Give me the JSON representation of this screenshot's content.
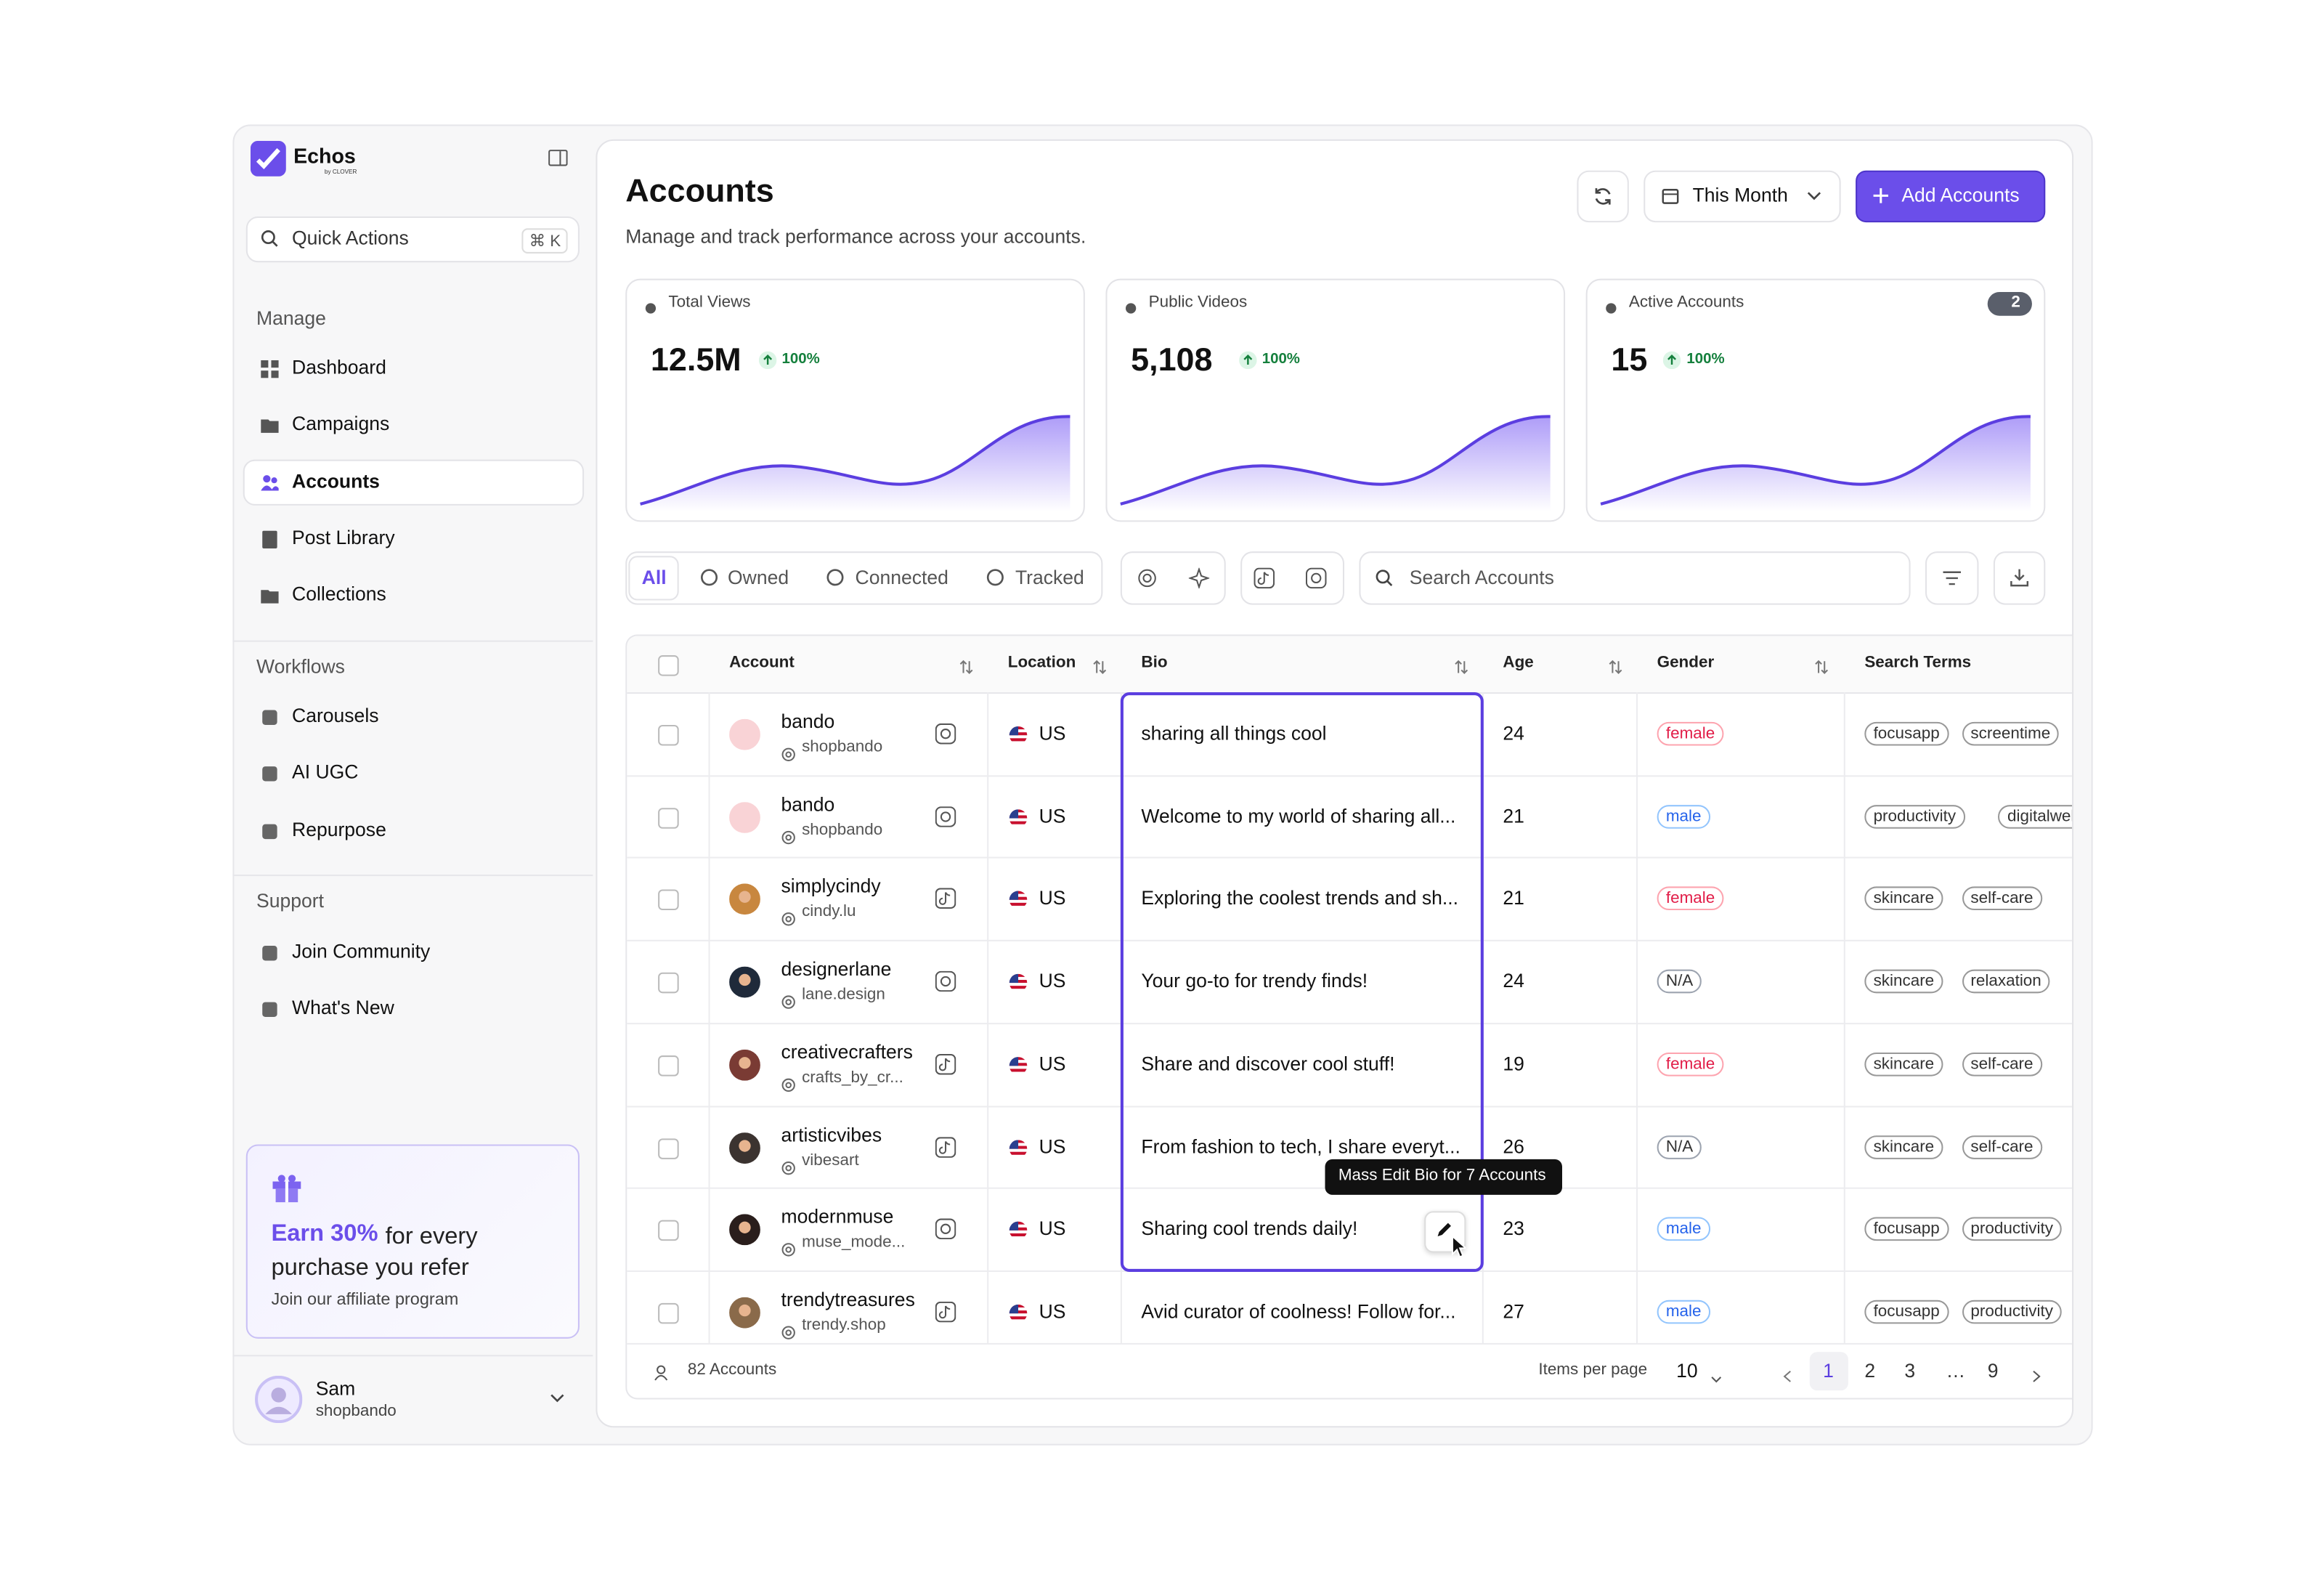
{
  "sidebar": {
    "brand": "Echos",
    "brand_sub": "by CLOVER",
    "quick_actions": "Quick Actions",
    "shortcut": "⌘ K",
    "sections": [
      {
        "title": "Manage",
        "items": [
          "Dashboard",
          "Campaigns",
          "Accounts",
          "Post Library",
          "Collections"
        ]
      },
      {
        "title": "Workflows",
        "items": [
          "Carousels",
          "AI UGC",
          "Repurpose"
        ]
      },
      {
        "title": "Support",
        "items": [
          "Join Community",
          "What's New"
        ]
      }
    ],
    "promo": {
      "highlight": "Earn 30%",
      "text": "for every purchase you refer",
      "sub": "Join our affiliate program"
    },
    "user": {
      "name": "Sam",
      "handle": "shopbando"
    }
  },
  "header": {
    "title": "Accounts",
    "subtitle": "Manage and track performance across your accounts.",
    "period": "This Month",
    "add_button": "Add Accounts"
  },
  "stats": [
    {
      "label": "Total Views",
      "value": "12.5M",
      "change": "100%"
    },
    {
      "label": "Public Videos",
      "value": "5,108",
      "change": "100%"
    },
    {
      "label": "Active Accounts",
      "value": "15",
      "change": "100%",
      "badge": "2"
    }
  ],
  "filters": {
    "tabs": [
      "All",
      "Owned",
      "Connected",
      "Tracked"
    ],
    "search_placeholder": "Search Accounts"
  },
  "table": {
    "columns": [
      "Account",
      "Location",
      "Bio",
      "Age",
      "Gender",
      "Search Terms"
    ],
    "rows": [
      {
        "name": "bando",
        "handle": "shopbando",
        "location": "US",
        "bio": "sharing all things cool",
        "age": 24,
        "gender": "female",
        "terms": [
          "focusapp",
          "screentime"
        ]
      },
      {
        "name": "bando",
        "handle": "shopbando",
        "location": "US",
        "bio": "Welcome to my world of sharing all...",
        "age": 21,
        "gender": "male",
        "terms": [
          "productivity",
          "digitalwellbeing"
        ]
      },
      {
        "name": "simplycindy",
        "handle": "cindy.lu",
        "location": "US",
        "bio": "Exploring the coolest trends and sh...",
        "age": 21,
        "gender": "female",
        "terms": [
          "skincare",
          "self-care"
        ]
      },
      {
        "name": "designerlane",
        "handle": "lane.design",
        "location": "US",
        "bio": "Your go-to for trendy finds!",
        "age": 24,
        "gender": "N/A",
        "terms": [
          "skincare",
          "relaxation"
        ]
      },
      {
        "name": "creativecrafters",
        "handle": "crafts_by_cr...",
        "location": "US",
        "bio": "Share and discover cool stuff!",
        "age": 19,
        "gender": "female",
        "terms": [
          "skincare",
          "self-care"
        ]
      },
      {
        "name": "artisticvibes",
        "handle": "vibesart",
        "location": "US",
        "bio": "From fashion to tech, I share everyt...",
        "age": 26,
        "gender": "N/A",
        "terms": [
          "skincare",
          "self-care"
        ]
      },
      {
        "name": "modernmuse",
        "handle": "muse_mode...",
        "location": "US",
        "bio": "Sharing cool trends daily!",
        "age": 23,
        "gender": "male",
        "terms": [
          "focusapp",
          "productivity"
        ]
      },
      {
        "name": "trendytreasures",
        "handle": "trendy.shop",
        "location": "US",
        "bio": "Avid curator of coolness! Follow for...",
        "age": 27,
        "gender": "male",
        "terms": [
          "focusapp",
          "productivity"
        ]
      }
    ]
  },
  "tooltip": "Mass Edit Bio for 7 Accounts",
  "footer": {
    "count": "82 Accounts",
    "items_per_page_label": "Items per page",
    "items_per_page": "10",
    "pages": [
      "1",
      "2",
      "3",
      "…",
      "9"
    ]
  }
}
